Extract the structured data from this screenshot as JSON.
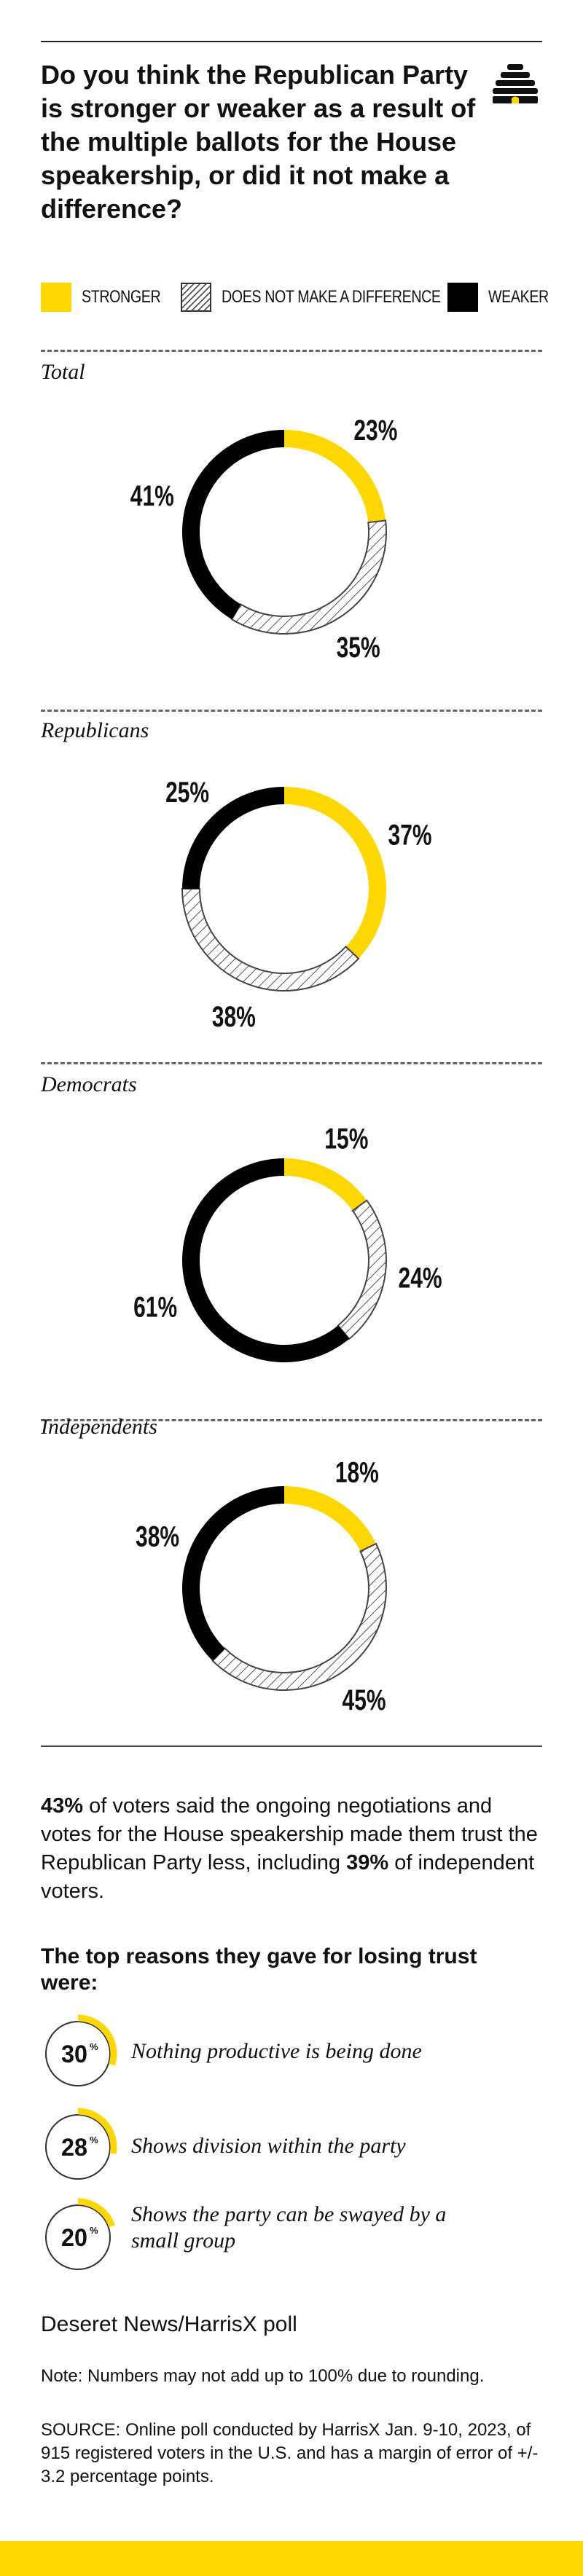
{
  "question": "Do you think the Republican Party is stronger or weaker as a result of the multiple ballots for the House speakership, or did it not make a difference?",
  "logo": {
    "icon": "beehive-icon"
  },
  "colors": {
    "stronger": "#ffd700",
    "weaker": "#000000",
    "hatch": "#555555",
    "accent": "#ffd700"
  },
  "legend": [
    {
      "key": "stronger",
      "label": "STRONGER"
    },
    {
      "key": "no_difference",
      "label": "DOES NOT MAKE A DIFFERENCE"
    },
    {
      "key": "weaker",
      "label": "WEAKER"
    }
  ],
  "chart_data": [
    {
      "type": "pie",
      "title": "Total",
      "categories": [
        "Stronger",
        "Does not make a difference",
        "Weaker"
      ],
      "values": [
        23,
        35,
        41
      ],
      "labels": [
        "23%",
        "35%",
        "41%"
      ]
    },
    {
      "type": "pie",
      "title": "Republicans",
      "categories": [
        "Stronger",
        "Does not make a difference",
        "Weaker"
      ],
      "values": [
        37,
        38,
        25
      ],
      "labels": [
        "37%",
        "38%",
        "25%"
      ]
    },
    {
      "type": "pie",
      "title": "Democrats",
      "categories": [
        "Stronger",
        "Does not make a difference",
        "Weaker"
      ],
      "values": [
        15,
        24,
        61
      ],
      "labels": [
        "15%",
        "24%",
        "61%"
      ]
    },
    {
      "type": "pie",
      "title": "Independents",
      "categories": [
        "Stronger",
        "Does not make a difference",
        "Weaker"
      ],
      "values": [
        18,
        45,
        38
      ],
      "labels": [
        "18%",
        "45%",
        "38%"
      ]
    }
  ],
  "summary": {
    "stat1": "43%",
    "text1": " of voters said the ongoing negotiations and votes for the House speakership made them trust the Republican Party less, including ",
    "stat2": "39%",
    "text2": " of independent voters."
  },
  "reasons_heading": "The top reasons they gave for losing trust were:",
  "reasons": [
    {
      "value": 30,
      "number": "30",
      "unit": "%",
      "text": "Nothing productive is being done"
    },
    {
      "value": 28,
      "number": "28",
      "unit": "%",
      "text": "Shows division within the party"
    },
    {
      "value": 20,
      "number": "20",
      "unit": "%",
      "text": "Shows the party can be swayed by a small group"
    }
  ],
  "source_name": "Deseret News/HarrisX poll",
  "note": "Note: Numbers may not add up to 100% due to rounding.",
  "source": "SOURCE: Online poll conducted by HarrisX Jan. 9-10, 2023, of 915 registered voters in the U.S. and has a margin of error of +/- 3.2 percentage points."
}
